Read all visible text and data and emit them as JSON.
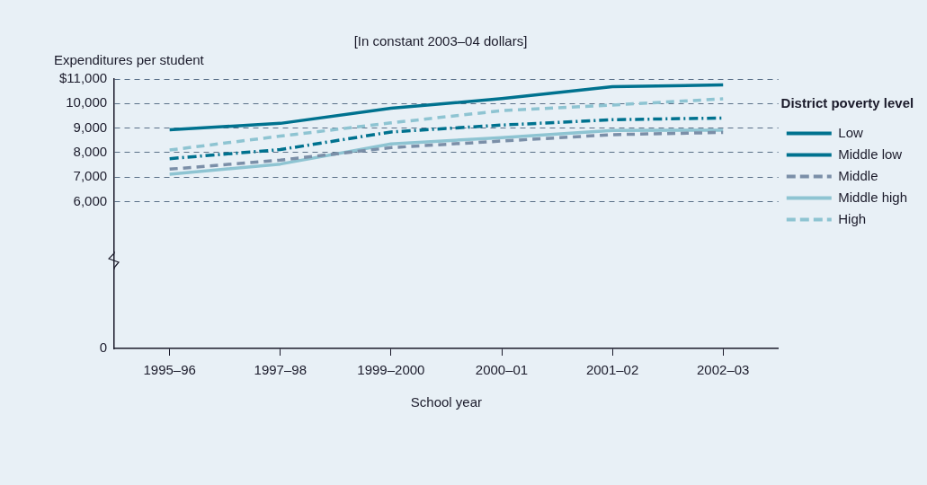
{
  "chart_data": {
    "type": "line",
    "annotations": [
      "[In constant 2003–04 dollars]"
    ],
    "ylabel": "Expenditures per student",
    "xlabel": "School year",
    "legend_title": "District poverty level",
    "categories": [
      "1995–96",
      "1997–98",
      "1999–2000",
      "2000–01",
      "2001–02",
      "2002–03"
    ],
    "ylim": [
      0,
      11000
    ],
    "yticks": [
      0,
      {
        "value": 6000,
        "label": "6,000"
      },
      {
        "value": 7000,
        "label": "7,000"
      },
      {
        "value": 8000,
        "label": "8,000"
      },
      {
        "value": 9000,
        "label": "9,000"
      },
      {
        "value": 10000,
        "label": "10,000"
      },
      {
        "value": 11000,
        "label": "$11,000"
      }
    ],
    "grid": "y",
    "legend": "right",
    "marker": "none",
    "series": [
      {
        "name": "Low",
        "color": "#00728f",
        "line_style": "solid",
        "values": [
          8930,
          9190,
          9810,
          10200,
          10690,
          10760
        ]
      },
      {
        "name": "Middle low",
        "color": "#00728f",
        "line_style": "dashdot",
        "values": [
          7750,
          8120,
          8840,
          9120,
          9340,
          9410
        ]
      },
      {
        "name": "Middle",
        "color": "#7b8fa8",
        "line_style": "dashed",
        "values": [
          7320,
          7690,
          8200,
          8470,
          8730,
          8820
        ]
      },
      {
        "name": "Middle high",
        "color": "#8ec4d2",
        "line_style": "solid",
        "values": [
          7110,
          7530,
          8350,
          8610,
          8900,
          8910
        ]
      },
      {
        "name": "High",
        "color": "#8ec4d2",
        "line_style": "dashed",
        "values": [
          8100,
          8670,
          9210,
          9710,
          9940,
          10190
        ]
      }
    ]
  }
}
